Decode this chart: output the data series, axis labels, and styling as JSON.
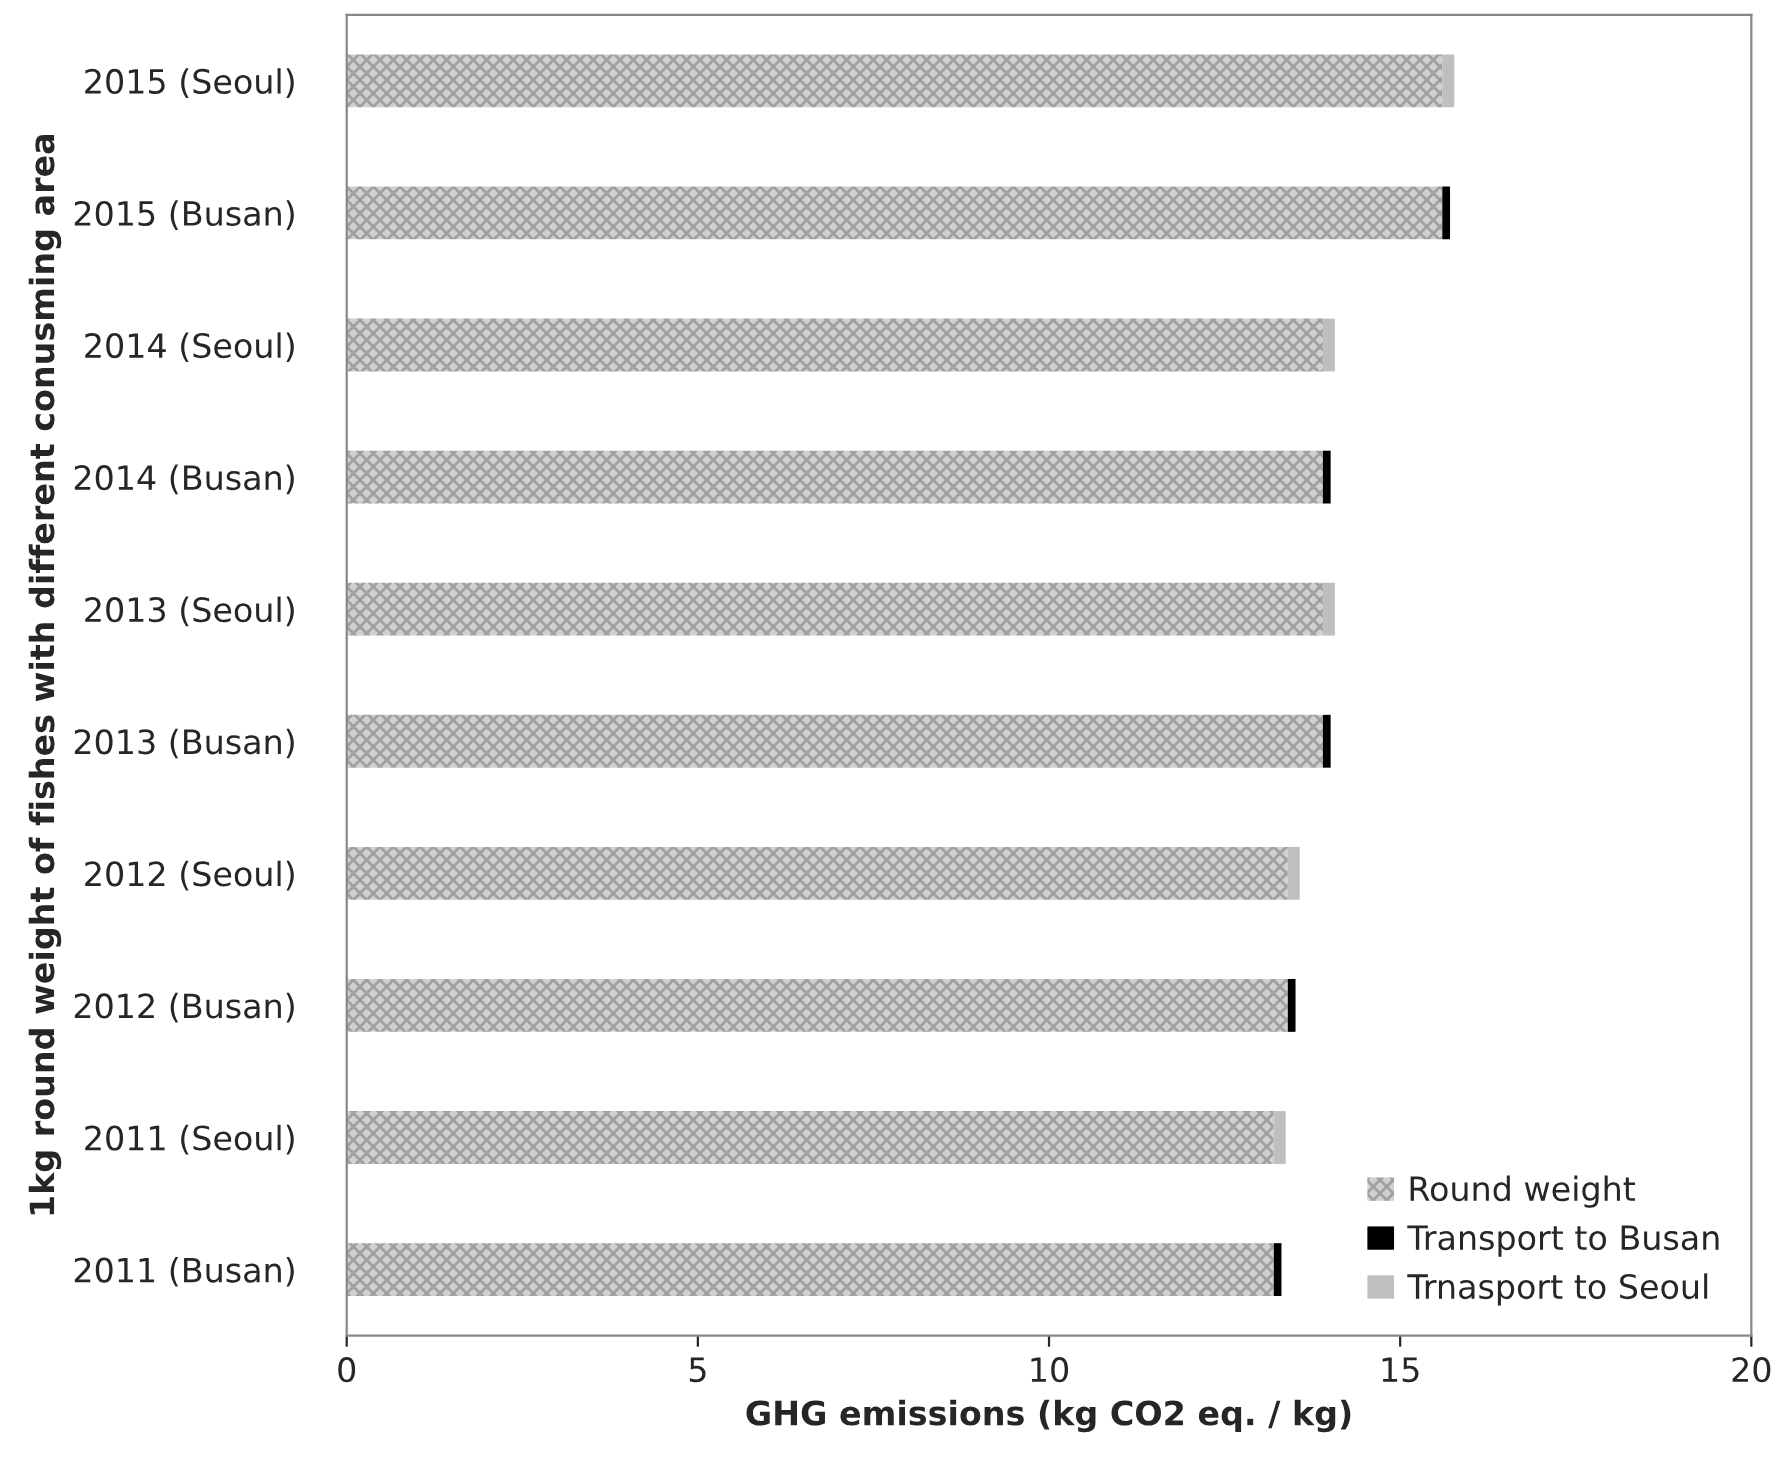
{
  "chart_data": {
    "type": "bar",
    "orientation": "horizontal",
    "stacked": true,
    "xlabel": "GHG emissions (kg CO2 eq. / kg)",
    "ylabel": "1kg round weight of fishes with different conusming area",
    "categories": [
      "2015 (Seoul)",
      "2015 (Busan)",
      "2014 (Seoul)",
      "2014 (Busan)",
      "2013 (Seoul)",
      "2013 (Busan)",
      "2012 (Seoul)",
      "2012 (Busan)",
      "2011 (Seoul)",
      "2011 (Busan)"
    ],
    "series": [
      {
        "name": "Round weight",
        "color": "#d0d0d0",
        "values": [
          15.6,
          15.6,
          13.9,
          13.9,
          13.9,
          13.9,
          13.4,
          13.4,
          13.2,
          13.2
        ]
      },
      {
        "name": "Transport to Busan",
        "color": "#000000",
        "values": [
          null,
          0.11,
          null,
          0.11,
          null,
          0.11,
          null,
          0.11,
          null,
          0.11
        ]
      },
      {
        "name": "Trnasport to Seoul",
        "color": "#bfbfbf",
        "values": [
          0.17,
          null,
          0.17,
          null,
          0.17,
          null,
          0.17,
          null,
          0.17,
          null
        ]
      }
    ],
    "xlim": [
      0,
      20
    ],
    "xticks": [
      0,
      5,
      10,
      15,
      20
    ],
    "grid": false,
    "legend": "bottom right"
  }
}
